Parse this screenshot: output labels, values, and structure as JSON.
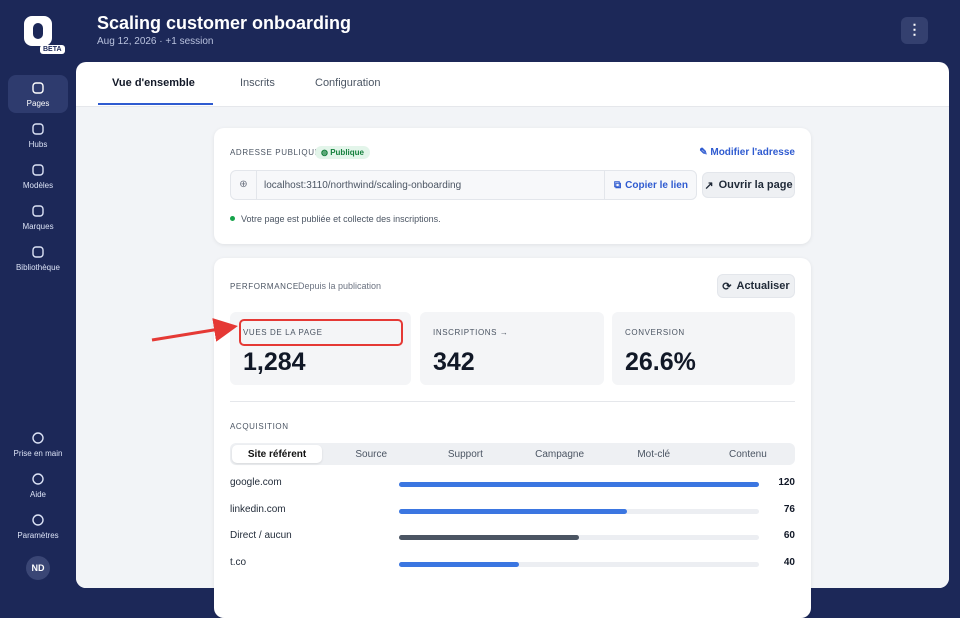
{
  "sidebar": {
    "badge": "BETA",
    "nav": [
      "Pages",
      "Hubs",
      "Modèles",
      "Marques",
      "Bibliothèque"
    ],
    "bottom": [
      "Prise en main",
      "Aide",
      "Paramètres"
    ],
    "avatar": "ND"
  },
  "header": {
    "title": "Scaling customer onboarding",
    "subtitle": "Aug 12, 2026 · +1 session"
  },
  "tabs": [
    "Vue d'ensemble",
    "Inscrits",
    "Configuration"
  ],
  "public_address": {
    "label": "ADRESSE PUBLIQUE",
    "badge": "Publique",
    "edit": "Modifier l'adresse",
    "url": "localhost:3110/northwind/scaling-onboarding",
    "copy": "Copier le lien",
    "open": "Ouvrir la page",
    "status": "Votre page est publiée et collecte des inscriptions."
  },
  "performance": {
    "label": "PERFORMANCE",
    "period": "Depuis la publication",
    "refresh": "Actualiser",
    "stats": [
      {
        "label": "VUES DE LA PAGE",
        "value": "1,284"
      },
      {
        "label": "INSCRIPTIONS →",
        "value": "342"
      },
      {
        "label": "CONVERSION",
        "value": "26.6%"
      }
    ]
  },
  "acquisition": {
    "label": "ACQUISITION",
    "tabs": [
      "Site référent",
      "Source",
      "Support",
      "Campagne",
      "Mot-clé",
      "Contenu"
    ],
    "rows": [
      {
        "name": "google.com",
        "value": 120,
        "color": "#3b76e1"
      },
      {
        "name": "linkedin.com",
        "value": 76,
        "color": "#3b76e1"
      },
      {
        "name": "Direct / aucun",
        "value": 60,
        "color": "#4b5563"
      },
      {
        "name": "t.co",
        "value": 40,
        "color": "#3b76e1"
      }
    ]
  }
}
